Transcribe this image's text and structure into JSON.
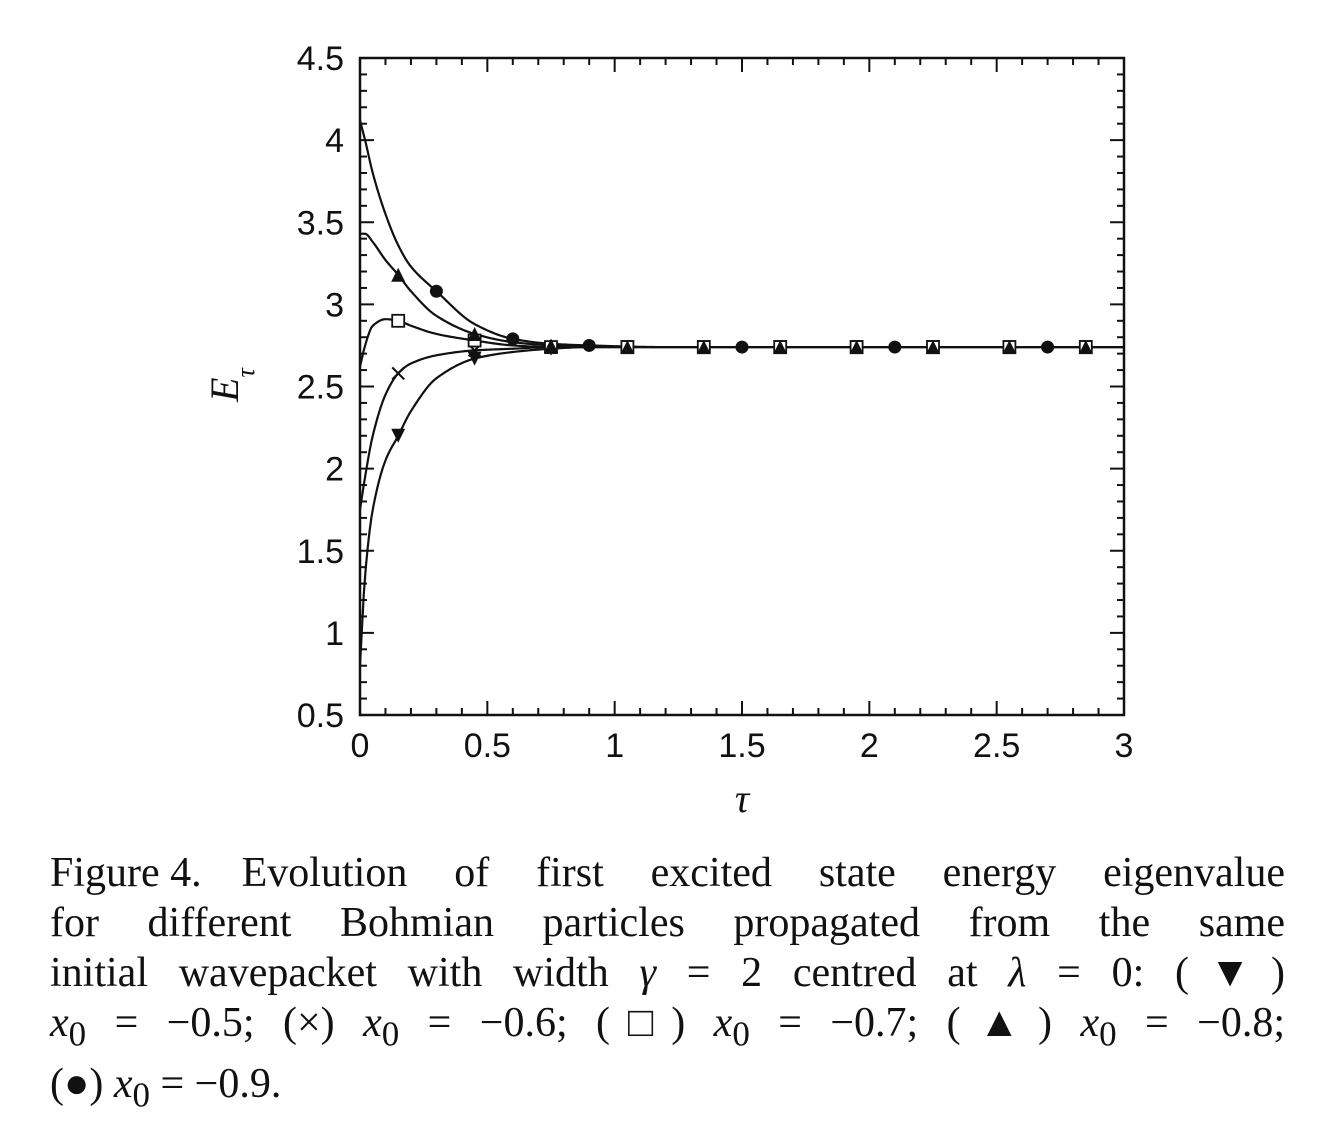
{
  "chart_data": {
    "type": "line",
    "xlabel": "τ",
    "ylabel": "E",
    "ylabel_sub": "τ",
    "xlim": [
      0,
      3
    ],
    "ylim": [
      0.5,
      4.5
    ],
    "xticks": [
      "0",
      "0.5",
      "1",
      "1.5",
      "2",
      "2.5",
      "3"
    ],
    "yticks": [
      "0.5",
      "1",
      "1.5",
      "2",
      "2.5",
      "3",
      "3.5",
      "4",
      "4.5"
    ],
    "x_tick_values": [
      0,
      0.5,
      1,
      1.5,
      2,
      2.5,
      3
    ],
    "y_tick_values": [
      0.5,
      1,
      1.5,
      2,
      2.5,
      3,
      3.5,
      4,
      4.5
    ],
    "grid": false,
    "series": [
      {
        "marker": "triangle-down",
        "x": [
          0,
          0.02,
          0.05,
          0.1,
          0.15,
          0.2,
          0.3,
          0.45,
          0.6,
          0.75,
          0.9,
          1.05,
          1.35,
          1.65,
          1.95,
          2.25,
          2.55,
          2.85
        ],
        "y": [
          0.8,
          1.35,
          1.75,
          2.05,
          2.2,
          2.35,
          2.55,
          2.67,
          2.71,
          2.73,
          2.74,
          2.74,
          2.74,
          2.74,
          2.74,
          2.74,
          2.74,
          2.74
        ],
        "marker_x": [
          0.15,
          0.45,
          0.75,
          1.05,
          1.35,
          1.65,
          1.95,
          2.25,
          2.55,
          2.85
        ]
      },
      {
        "marker": "cross",
        "x": [
          0,
          0.02,
          0.05,
          0.1,
          0.15,
          0.2,
          0.3,
          0.45,
          0.6,
          0.75,
          0.9,
          1.05,
          1.35,
          1.65,
          1.95,
          2.25,
          2.55,
          2.85
        ],
        "y": [
          1.75,
          1.95,
          2.2,
          2.45,
          2.58,
          2.64,
          2.69,
          2.72,
          2.73,
          2.74,
          2.74,
          2.74,
          2.74,
          2.74,
          2.74,
          2.74,
          2.74,
          2.74
        ],
        "marker_x": [
          0.15,
          0.45,
          0.75,
          1.05,
          1.35,
          1.65,
          1.95,
          2.25,
          2.55,
          2.85
        ]
      },
      {
        "marker": "square-open",
        "x": [
          0,
          0.02,
          0.05,
          0.1,
          0.15,
          0.2,
          0.3,
          0.45,
          0.6,
          0.75,
          0.9,
          1.05,
          1.35,
          1.65,
          1.95,
          2.25,
          2.55,
          2.85
        ],
        "y": [
          2.62,
          2.75,
          2.87,
          2.91,
          2.9,
          2.87,
          2.82,
          2.78,
          2.75,
          2.74,
          2.74,
          2.74,
          2.74,
          2.74,
          2.74,
          2.74,
          2.74,
          2.74
        ],
        "marker_x": [
          0.15,
          0.45,
          0.75,
          1.05,
          1.35,
          1.65,
          1.95,
          2.25,
          2.55,
          2.85
        ]
      },
      {
        "marker": "triangle-up",
        "x": [
          0,
          0.02,
          0.05,
          0.1,
          0.15,
          0.2,
          0.3,
          0.45,
          0.6,
          0.75,
          0.9,
          1.05,
          1.35,
          1.65,
          1.95,
          2.25,
          2.55,
          2.85
        ],
        "y": [
          3.43,
          3.43,
          3.38,
          3.27,
          3.18,
          3.08,
          2.93,
          2.82,
          2.77,
          2.75,
          2.74,
          2.74,
          2.74,
          2.74,
          2.74,
          2.74,
          2.74,
          2.74
        ],
        "marker_x": [
          0.15,
          0.45,
          0.75,
          1.05,
          1.35,
          1.65,
          1.95,
          2.25,
          2.55,
          2.85
        ]
      },
      {
        "marker": "circle-filled",
        "x": [
          0,
          0.02,
          0.05,
          0.1,
          0.15,
          0.2,
          0.3,
          0.45,
          0.6,
          0.75,
          0.9,
          1.2,
          1.5,
          1.8,
          2.1,
          2.4,
          2.7,
          2.85
        ],
        "y": [
          4.12,
          4.0,
          3.8,
          3.55,
          3.36,
          3.23,
          3.08,
          2.88,
          2.79,
          2.76,
          2.75,
          2.74,
          2.74,
          2.74,
          2.74,
          2.74,
          2.74,
          2.74
        ],
        "marker_x": [
          0.3,
          0.6,
          0.9,
          1.5,
          2.1,
          2.7
        ]
      }
    ]
  },
  "caption": {
    "label": "Figure 4.",
    "line1": "Evolution of first excited state energy eigenvalue",
    "line2": "for different Bohmian particles propagated from the same",
    "line3_a": "initial wavepacket with width ",
    "gamma": "γ",
    "eq_gamma": " = 2 centred at ",
    "lambda": "λ",
    "eq_lambda": " = 0: (▼)",
    "x0_text": "x",
    "x0_sub": "0",
    "v1": " = −0.5; (×) ",
    "v2": " = −0.6; (□) ",
    "v3": " = −0.7; (▲) ",
    "v4": " = −0.8;",
    "line5_a": "(●) ",
    "v5": " = −0.9."
  }
}
